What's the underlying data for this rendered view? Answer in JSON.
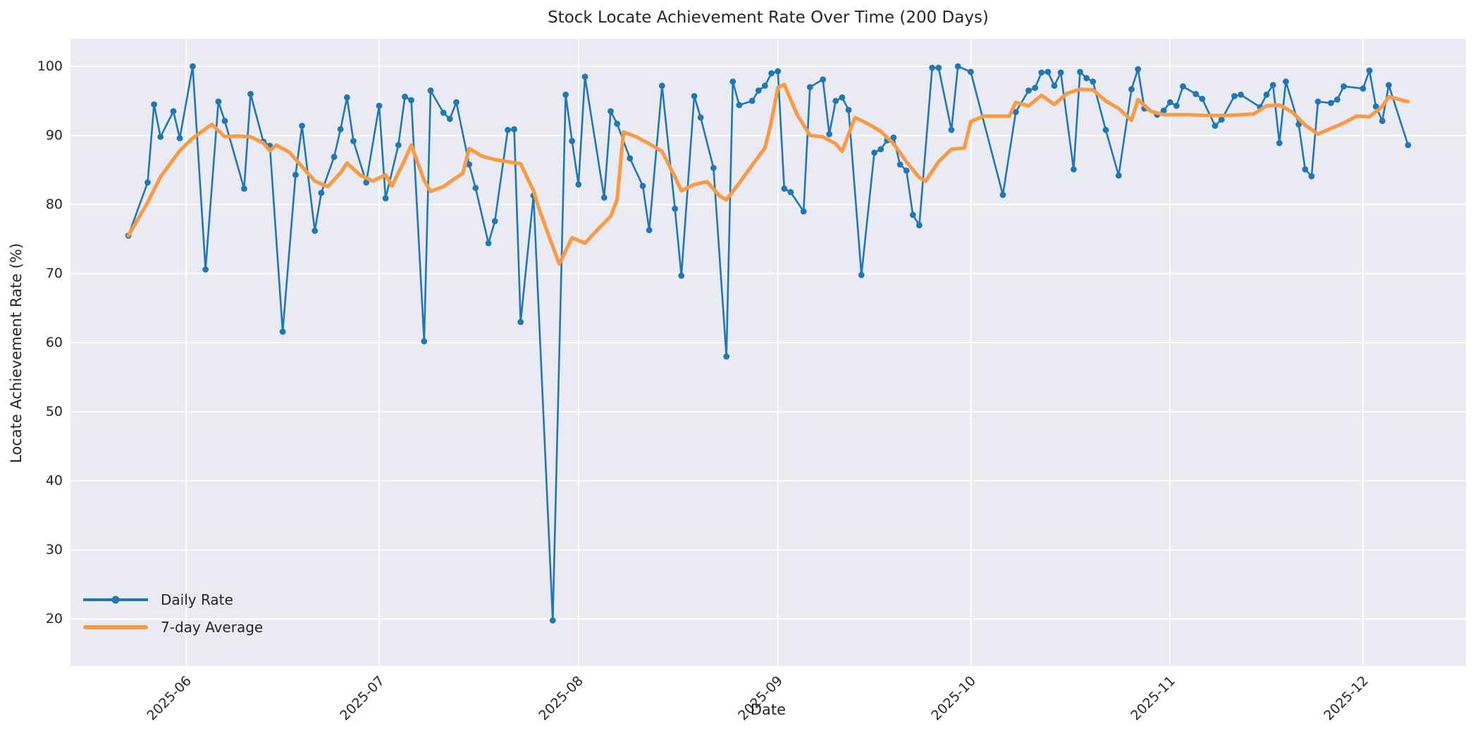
{
  "figure": {
    "title": "Stock Locate Achievement Rate Over Time (200 Days)",
    "xlabel": "Date",
    "ylabel": "Locate Achievement Rate (%)"
  },
  "colors": {
    "figure_bg": "#ffffff",
    "plot_bg": "#eaeaf2",
    "grid": "#ffffff",
    "text": "#262626",
    "daily": "#1f77b4",
    "average": "#f89b46"
  },
  "legend": {
    "position": "lower left",
    "items": [
      {
        "label": "Daily Rate",
        "color": "#1f77b4",
        "marker": true
      },
      {
        "label": "7-day Average",
        "color": "#f89b46",
        "marker": false
      }
    ]
  },
  "chart_data": {
    "type": "line",
    "title": "Stock Locate Achievement Rate Over Time (200 Days)",
    "xlabel": "Date",
    "ylabel": "Locate Achievement Rate (%)",
    "grid": true,
    "legend_position": "lower left",
    "x_axis": {
      "start": "2025-05-14",
      "end": "2025-12-17",
      "ticks": [
        {
          "date": "2025-06-01",
          "label": "2025-06"
        },
        {
          "date": "2025-07-01",
          "label": "2025-07"
        },
        {
          "date": "2025-08-01",
          "label": "2025-08"
        },
        {
          "date": "2025-09-01",
          "label": "2025-09"
        },
        {
          "date": "2025-10-01",
          "label": "2025-10"
        },
        {
          "date": "2025-11-01",
          "label": "2025-11"
        },
        {
          "date": "2025-12-01",
          "label": "2025-12"
        }
      ]
    },
    "y_axis": {
      "ticks": [
        20,
        30,
        40,
        50,
        60,
        70,
        80,
        90,
        100
      ],
      "lim": [
        13.2,
        104.0
      ]
    },
    "series": [
      {
        "name": "Daily Rate",
        "color": "#1f77b4",
        "line_width": 2.6,
        "markers": true,
        "marker_radius": 4.4,
        "data": [
          [
            "2025-05-23",
            75.5
          ],
          [
            "2025-05-26",
            83.2
          ],
          [
            "2025-05-27",
            94.5
          ],
          [
            "2025-05-28",
            89.8
          ],
          [
            "2025-05-30",
            93.5
          ],
          [
            "2025-05-31",
            89.6
          ],
          [
            "2025-06-02",
            100.0
          ],
          [
            "2025-06-04",
            70.6
          ],
          [
            "2025-06-06",
            94.9
          ],
          [
            "2025-06-07",
            92.1
          ],
          [
            "2025-06-10",
            82.3
          ],
          [
            "2025-06-11",
            96.0
          ],
          [
            "2025-06-13",
            89.1
          ],
          [
            "2025-06-14",
            88.5
          ],
          [
            "2025-06-16",
            61.6
          ],
          [
            "2025-06-18",
            84.3
          ],
          [
            "2025-06-19",
            91.4
          ],
          [
            "2025-06-21",
            76.2
          ],
          [
            "2025-06-22",
            81.7
          ],
          [
            "2025-06-24",
            86.9
          ],
          [
            "2025-06-25",
            90.9
          ],
          [
            "2025-06-26",
            95.5
          ],
          [
            "2025-06-27",
            89.2
          ],
          [
            "2025-06-29",
            83.2
          ],
          [
            "2025-07-01",
            94.3
          ],
          [
            "2025-07-02",
            80.9
          ],
          [
            "2025-07-04",
            88.6
          ],
          [
            "2025-07-05",
            95.6
          ],
          [
            "2025-07-06",
            95.1
          ],
          [
            "2025-07-08",
            60.2
          ],
          [
            "2025-07-09",
            96.5
          ],
          [
            "2025-07-11",
            93.3
          ],
          [
            "2025-07-12",
            92.4
          ],
          [
            "2025-07-13",
            94.8
          ],
          [
            "2025-07-15",
            85.8
          ],
          [
            "2025-07-16",
            82.4
          ],
          [
            "2025-07-18",
            74.4
          ],
          [
            "2025-07-19",
            77.6
          ],
          [
            "2025-07-21",
            90.8
          ],
          [
            "2025-07-22",
            90.9
          ],
          [
            "2025-07-23",
            63.0
          ],
          [
            "2025-07-25",
            81.3
          ],
          [
            "2025-07-28",
            19.8
          ],
          [
            "2025-07-30",
            95.9
          ],
          [
            "2025-07-31",
            89.2
          ],
          [
            "2025-08-01",
            82.9
          ],
          [
            "2025-08-02",
            98.5
          ],
          [
            "2025-08-05",
            81.0
          ],
          [
            "2025-08-06",
            93.5
          ],
          [
            "2025-08-07",
            91.7
          ],
          [
            "2025-08-09",
            86.7
          ],
          [
            "2025-08-11",
            82.7
          ],
          [
            "2025-08-12",
            76.3
          ],
          [
            "2025-08-14",
            97.2
          ],
          [
            "2025-08-16",
            79.4
          ],
          [
            "2025-08-17",
            69.7
          ],
          [
            "2025-08-19",
            95.7
          ],
          [
            "2025-08-20",
            92.6
          ],
          [
            "2025-08-22",
            85.3
          ],
          [
            "2025-08-24",
            58.0
          ],
          [
            "2025-08-25",
            97.8
          ],
          [
            "2025-08-26",
            94.4
          ],
          [
            "2025-08-28",
            95.0
          ],
          [
            "2025-08-29",
            96.5
          ],
          [
            "2025-08-30",
            97.2
          ],
          [
            "2025-08-31",
            99.0
          ],
          [
            "2025-09-01",
            99.3
          ],
          [
            "2025-09-02",
            82.3
          ],
          [
            "2025-09-03",
            81.8
          ],
          [
            "2025-09-05",
            79.0
          ],
          [
            "2025-09-06",
            97.0
          ],
          [
            "2025-09-08",
            98.1
          ],
          [
            "2025-09-09",
            90.2
          ],
          [
            "2025-09-10",
            95.0
          ],
          [
            "2025-09-11",
            95.5
          ],
          [
            "2025-09-12",
            93.7
          ],
          [
            "2025-09-14",
            69.8
          ],
          [
            "2025-09-16",
            87.5
          ],
          [
            "2025-09-17",
            88.0
          ],
          [
            "2025-09-18",
            89.3
          ],
          [
            "2025-09-19",
            89.7
          ],
          [
            "2025-09-20",
            85.8
          ],
          [
            "2025-09-21",
            84.9
          ],
          [
            "2025-09-22",
            78.5
          ],
          [
            "2025-09-23",
            77.0
          ],
          [
            "2025-09-25",
            99.8
          ],
          [
            "2025-09-26",
            99.8
          ],
          [
            "2025-09-28",
            90.8
          ],
          [
            "2025-09-29",
            100.0
          ],
          [
            "2025-10-01",
            99.2
          ],
          [
            "2025-10-06",
            81.4
          ],
          [
            "2025-10-08",
            93.4
          ],
          [
            "2025-10-10",
            96.5
          ],
          [
            "2025-10-11",
            96.9
          ],
          [
            "2025-10-12",
            99.1
          ],
          [
            "2025-10-13",
            99.2
          ],
          [
            "2025-10-14",
            97.2
          ],
          [
            "2025-10-15",
            99.1
          ],
          [
            "2025-10-17",
            85.1
          ],
          [
            "2025-10-18",
            99.2
          ],
          [
            "2025-10-19",
            98.3
          ],
          [
            "2025-10-20",
            97.8
          ],
          [
            "2025-10-22",
            90.8
          ],
          [
            "2025-10-24",
            84.2
          ],
          [
            "2025-10-26",
            96.7
          ],
          [
            "2025-10-27",
            99.6
          ],
          [
            "2025-10-28",
            93.9
          ],
          [
            "2025-10-30",
            93.0
          ],
          [
            "2025-10-31",
            93.6
          ],
          [
            "2025-11-01",
            94.8
          ],
          [
            "2025-11-02",
            94.3
          ],
          [
            "2025-11-03",
            97.1
          ],
          [
            "2025-11-05",
            96.0
          ],
          [
            "2025-11-06",
            95.3
          ],
          [
            "2025-11-08",
            91.4
          ],
          [
            "2025-11-09",
            92.3
          ],
          [
            "2025-11-11",
            95.7
          ],
          [
            "2025-11-12",
            95.9
          ],
          [
            "2025-11-15",
            94.1
          ],
          [
            "2025-11-16",
            95.9
          ],
          [
            "2025-11-17",
            97.3
          ],
          [
            "2025-11-18",
            88.9
          ],
          [
            "2025-11-19",
            97.8
          ],
          [
            "2025-11-21",
            91.6
          ],
          [
            "2025-11-22",
            85.1
          ],
          [
            "2025-11-23",
            84.1
          ],
          [
            "2025-11-24",
            94.9
          ],
          [
            "2025-11-26",
            94.7
          ],
          [
            "2025-11-27",
            95.2
          ],
          [
            "2025-11-28",
            97.1
          ],
          [
            "2025-12-01",
            96.8
          ],
          [
            "2025-12-02",
            99.4
          ],
          [
            "2025-12-03",
            94.2
          ],
          [
            "2025-12-04",
            92.1
          ],
          [
            "2025-12-05",
            97.3
          ],
          [
            "2025-12-08",
            88.6
          ]
        ]
      },
      {
        "name": "7-day Average",
        "color": "#f89b46",
        "line_width": 5.2,
        "markers": false,
        "marker_radius": 0,
        "data": [
          [
            "2025-05-23",
            75.5
          ],
          [
            "2025-05-26",
            80.3
          ],
          [
            "2025-05-28",
            84.0
          ],
          [
            "2025-05-31",
            87.8
          ],
          [
            "2025-06-02",
            89.6
          ],
          [
            "2025-06-05",
            91.6
          ],
          [
            "2025-06-07",
            89.8
          ],
          [
            "2025-06-09",
            89.9
          ],
          [
            "2025-06-11",
            89.8
          ],
          [
            "2025-06-13",
            88.9
          ],
          [
            "2025-06-14",
            87.8
          ],
          [
            "2025-06-15",
            88.6
          ],
          [
            "2025-06-17",
            87.6
          ],
          [
            "2025-06-19",
            85.5
          ],
          [
            "2025-06-21",
            83.4
          ],
          [
            "2025-06-23",
            82.6
          ],
          [
            "2025-06-25",
            84.6
          ],
          [
            "2025-06-26",
            86.0
          ],
          [
            "2025-06-28",
            84.3
          ],
          [
            "2025-06-30",
            83.4
          ],
          [
            "2025-07-02",
            84.3
          ],
          [
            "2025-07-03",
            82.7
          ],
          [
            "2025-07-05",
            86.5
          ],
          [
            "2025-07-06",
            88.6
          ],
          [
            "2025-07-08",
            83.5
          ],
          [
            "2025-07-09",
            81.9
          ],
          [
            "2025-07-11",
            82.6
          ],
          [
            "2025-07-13",
            83.9
          ],
          [
            "2025-07-14",
            84.5
          ],
          [
            "2025-07-15",
            88.1
          ],
          [
            "2025-07-17",
            87.0
          ],
          [
            "2025-07-19",
            86.5
          ],
          [
            "2025-07-21",
            86.2
          ],
          [
            "2025-07-23",
            85.9
          ],
          [
            "2025-07-25",
            82.0
          ],
          [
            "2025-07-26",
            79.0
          ],
          [
            "2025-07-29",
            71.4
          ],
          [
            "2025-07-31",
            75.2
          ],
          [
            "2025-08-02",
            74.4
          ],
          [
            "2025-08-04",
            76.4
          ],
          [
            "2025-08-06",
            78.3
          ],
          [
            "2025-08-07",
            80.7
          ],
          [
            "2025-08-08",
            90.5
          ],
          [
            "2025-08-10",
            89.8
          ],
          [
            "2025-08-12",
            88.8
          ],
          [
            "2025-08-14",
            87.7
          ],
          [
            "2025-08-16",
            84.0
          ],
          [
            "2025-08-17",
            82.0
          ],
          [
            "2025-08-19",
            82.9
          ],
          [
            "2025-08-21",
            83.3
          ],
          [
            "2025-08-23",
            81.2
          ],
          [
            "2025-08-24",
            80.7
          ],
          [
            "2025-08-26",
            83.1
          ],
          [
            "2025-08-28",
            85.7
          ],
          [
            "2025-08-30",
            88.2
          ],
          [
            "2025-08-31",
            92.0
          ],
          [
            "2025-09-01",
            96.9
          ],
          [
            "2025-09-02",
            97.4
          ],
          [
            "2025-09-04",
            93.0
          ],
          [
            "2025-09-06",
            90.0
          ],
          [
            "2025-09-08",
            89.8
          ],
          [
            "2025-09-10",
            88.8
          ],
          [
            "2025-09-11",
            87.7
          ],
          [
            "2025-09-13",
            92.6
          ],
          [
            "2025-09-15",
            91.7
          ],
          [
            "2025-09-17",
            90.6
          ],
          [
            "2025-09-19",
            88.8
          ],
          [
            "2025-09-21",
            86.2
          ],
          [
            "2025-09-23",
            83.9
          ],
          [
            "2025-09-24",
            83.4
          ],
          [
            "2025-09-26",
            86.2
          ],
          [
            "2025-09-28",
            88.0
          ],
          [
            "2025-09-30",
            88.2
          ],
          [
            "2025-10-01",
            92.0
          ],
          [
            "2025-10-03",
            92.8
          ],
          [
            "2025-10-05",
            92.8
          ],
          [
            "2025-10-07",
            92.8
          ],
          [
            "2025-10-08",
            94.8
          ],
          [
            "2025-10-10",
            94.3
          ],
          [
            "2025-10-12",
            95.8
          ],
          [
            "2025-10-14",
            94.5
          ],
          [
            "2025-10-16",
            96.1
          ],
          [
            "2025-10-18",
            96.7
          ],
          [
            "2025-10-20",
            96.6
          ],
          [
            "2025-10-22",
            95.0
          ],
          [
            "2025-10-24",
            93.9
          ],
          [
            "2025-10-26",
            92.2
          ],
          [
            "2025-10-27",
            95.2
          ],
          [
            "2025-10-29",
            93.5
          ],
          [
            "2025-10-31",
            93.0
          ],
          [
            "2025-11-02",
            93.0
          ],
          [
            "2025-11-04",
            93.0
          ],
          [
            "2025-11-06",
            92.9
          ],
          [
            "2025-11-08",
            92.9
          ],
          [
            "2025-11-10",
            92.9
          ],
          [
            "2025-11-12",
            93.0
          ],
          [
            "2025-11-14",
            93.1
          ],
          [
            "2025-11-16",
            94.3
          ],
          [
            "2025-11-18",
            94.4
          ],
          [
            "2025-11-20",
            93.4
          ],
          [
            "2025-11-22",
            91.5
          ],
          [
            "2025-11-24",
            90.2
          ],
          [
            "2025-11-26",
            91.0
          ],
          [
            "2025-11-28",
            91.8
          ],
          [
            "2025-11-30",
            92.8
          ],
          [
            "2025-12-02",
            92.7
          ],
          [
            "2025-12-04",
            94.2
          ],
          [
            "2025-12-05",
            95.6
          ],
          [
            "2025-12-08",
            94.9
          ]
        ]
      }
    ]
  }
}
